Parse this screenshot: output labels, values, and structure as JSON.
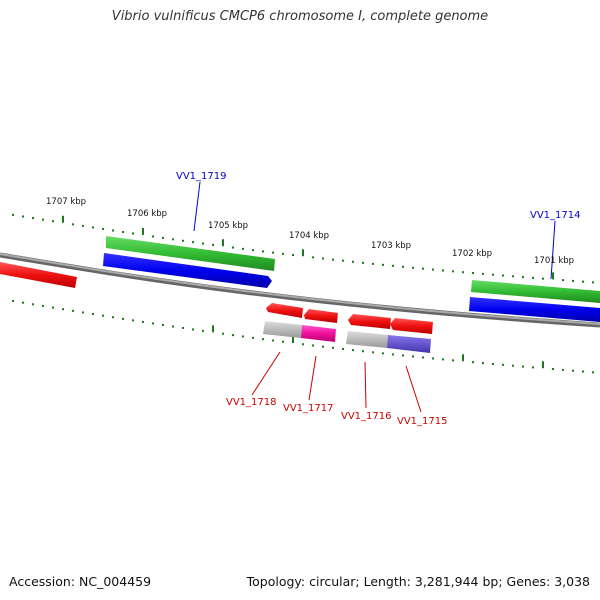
{
  "title": "Vibrio vulnificus CMCP6 chromosome I, complete genome",
  "footer": {
    "accession": "Accession: NC_004459",
    "summary": "Topology: circular; Length: 3,281,944 bp; Genes: 3,038"
  },
  "scale_labels": [
    "1707 kbp",
    "1706 kbp",
    "1705 kbp",
    "1704 kbp",
    "1703 kbp",
    "1702 kbp",
    "1701 kbp"
  ],
  "gene_labels_top": [
    "VV1_1719",
    "VV1_1714"
  ],
  "gene_labels_bottom": [
    "VV1_1718",
    "VV1_1717",
    "VV1_1716",
    "VV1_1715"
  ],
  "colors": {
    "label_top": "#0000cc",
    "label_bottom": "#cc0000",
    "tick": "#1a7a1a",
    "backbone": "#888888",
    "green": "#33bb33",
    "blue": "#0000ee",
    "red": "#ee1111",
    "magenta": "#ee1199",
    "grey": "#bbbbbb",
    "purple": "#6655cc"
  }
}
